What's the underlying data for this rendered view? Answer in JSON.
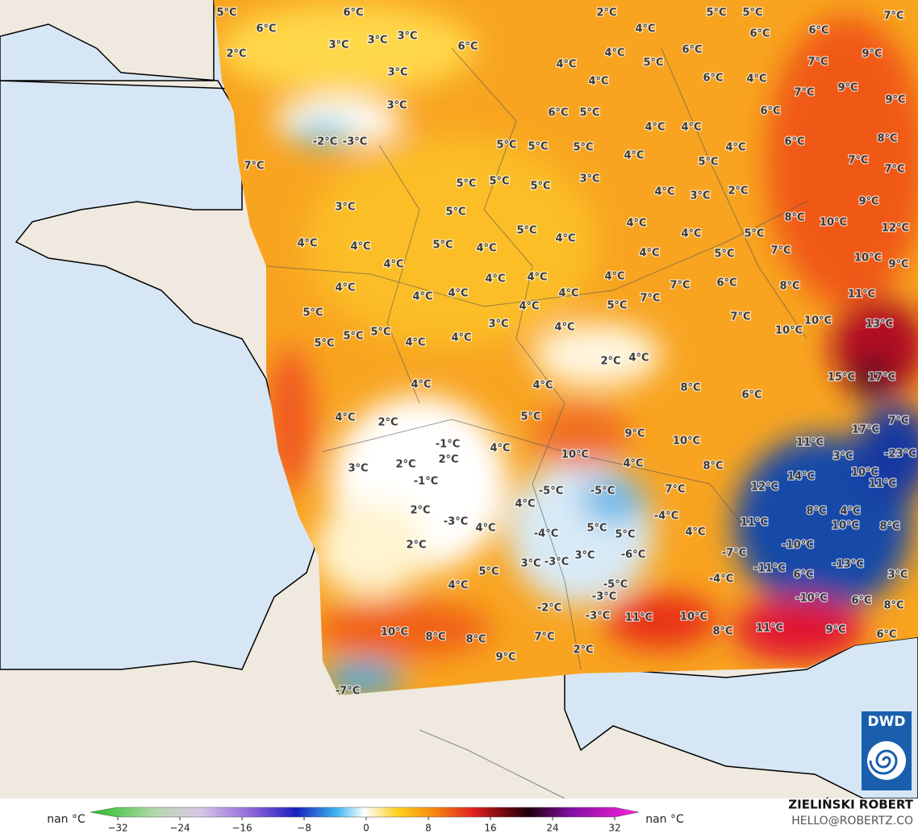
{
  "map": {
    "labels": [
      "5°C",
      "6°C",
      "6°C",
      "2°C",
      "3°C",
      "3°C",
      "3°C",
      "3°C",
      "3°C",
      "-2°C",
      "-3°C",
      "7°C",
      "6°C",
      "2°C",
      "4°C",
      "5°C",
      "5°C",
      "7°C",
      "6°C",
      "6°C",
      "6°C",
      "4°C",
      "5°C",
      "4°C",
      "4°C",
      "6°C",
      "4°C",
      "7°C",
      "9°C",
      "9°C",
      "7°C",
      "9°C",
      "6°C",
      "6°C",
      "5°C",
      "4°C",
      "4°C",
      "6°C",
      "8°C",
      "5°C",
      "5°C",
      "5°C",
      "4°C",
      "4°C",
      "7°C",
      "7°C",
      "5°C",
      "5°C",
      "5°C",
      "5°C",
      "3°C",
      "4°C",
      "3°C",
      "2°C",
      "9°C",
      "3°C",
      "5°C",
      "4°C",
      "8°C",
      "10°C",
      "12°C",
      "4°C",
      "4°C",
      "5°C",
      "4°C",
      "5°C",
      "4°C",
      "4°C",
      "5°C",
      "5°C",
      "7°C",
      "4°C",
      "10°C",
      "9°C",
      "4°C",
      "4°C",
      "4°C",
      "4°C",
      "7°C",
      "6°C",
      "8°C",
      "11°C",
      "4°C",
      "4°C",
      "4°C",
      "4°C",
      "4°C",
      "5°C",
      "7°C",
      "5°C",
      "5°C",
      "5°C",
      "5°C",
      "4°C",
      "4°C",
      "3°C",
      "4°C",
      "7°C",
      "10°C",
      "10°C",
      "13°C",
      "2°C",
      "4°C",
      "8°C",
      "6°C",
      "15°C",
      "17°C",
      "4°C",
      "4°C",
      "4°C",
      "2°C",
      "5°C",
      "9°C",
      "10°C",
      "11°C",
      "17°C",
      "7°C",
      "-1°C",
      "2°C",
      "4°C",
      "10°C",
      "4°C",
      "8°C",
      "3°C",
      "-23°C",
      "3°C",
      "2°C",
      "-1°C",
      "10°C",
      "14°C",
      "11°C",
      "12°C",
      "-5°C",
      "-5°C",
      "7°C",
      "4°C",
      "2°C",
      "-3°C",
      "4°C",
      "-4°C",
      "5°C",
      "5°C",
      "-4°C",
      "4°C",
      "8°C",
      "4°C",
      "10°C",
      "8°C",
      "11°C",
      "2°C",
      "-10°C",
      "-6°C",
      "-7°C",
      "-3°C",
      "3°C",
      "3°C",
      "-11°C",
      "-13°C",
      "5°C",
      "-4°C",
      "6°C",
      "3°C",
      "4°C",
      "-5°C",
      "-3°C",
      "-10°C",
      "6°C",
      "8°C",
      "-2°C",
      "-3°C",
      "11°C",
      "10°C",
      "8°C",
      "11°C",
      "9°C",
      "6°C",
      "10°C",
      "8°C",
      "8°C",
      "7°C",
      "2°C",
      "9°C",
      "-7°C"
    ]
  },
  "legend": {
    "left_label": "nan °C",
    "right_label": "nan °C",
    "lim": [
      -32,
      32
    ],
    "ticks": [
      {
        "value": -32,
        "label": "−32"
      },
      {
        "value": -24,
        "label": "−24"
      },
      {
        "value": -16,
        "label": "−16"
      },
      {
        "value": -8,
        "label": "−8"
      },
      0,
      8,
      16,
      24,
      32
    ]
  },
  "credits": {
    "author": "ZIELIŃSKI ROBERT",
    "contact": "HELLO@ROBERTZ.CO",
    "logo": "DWD"
  }
}
